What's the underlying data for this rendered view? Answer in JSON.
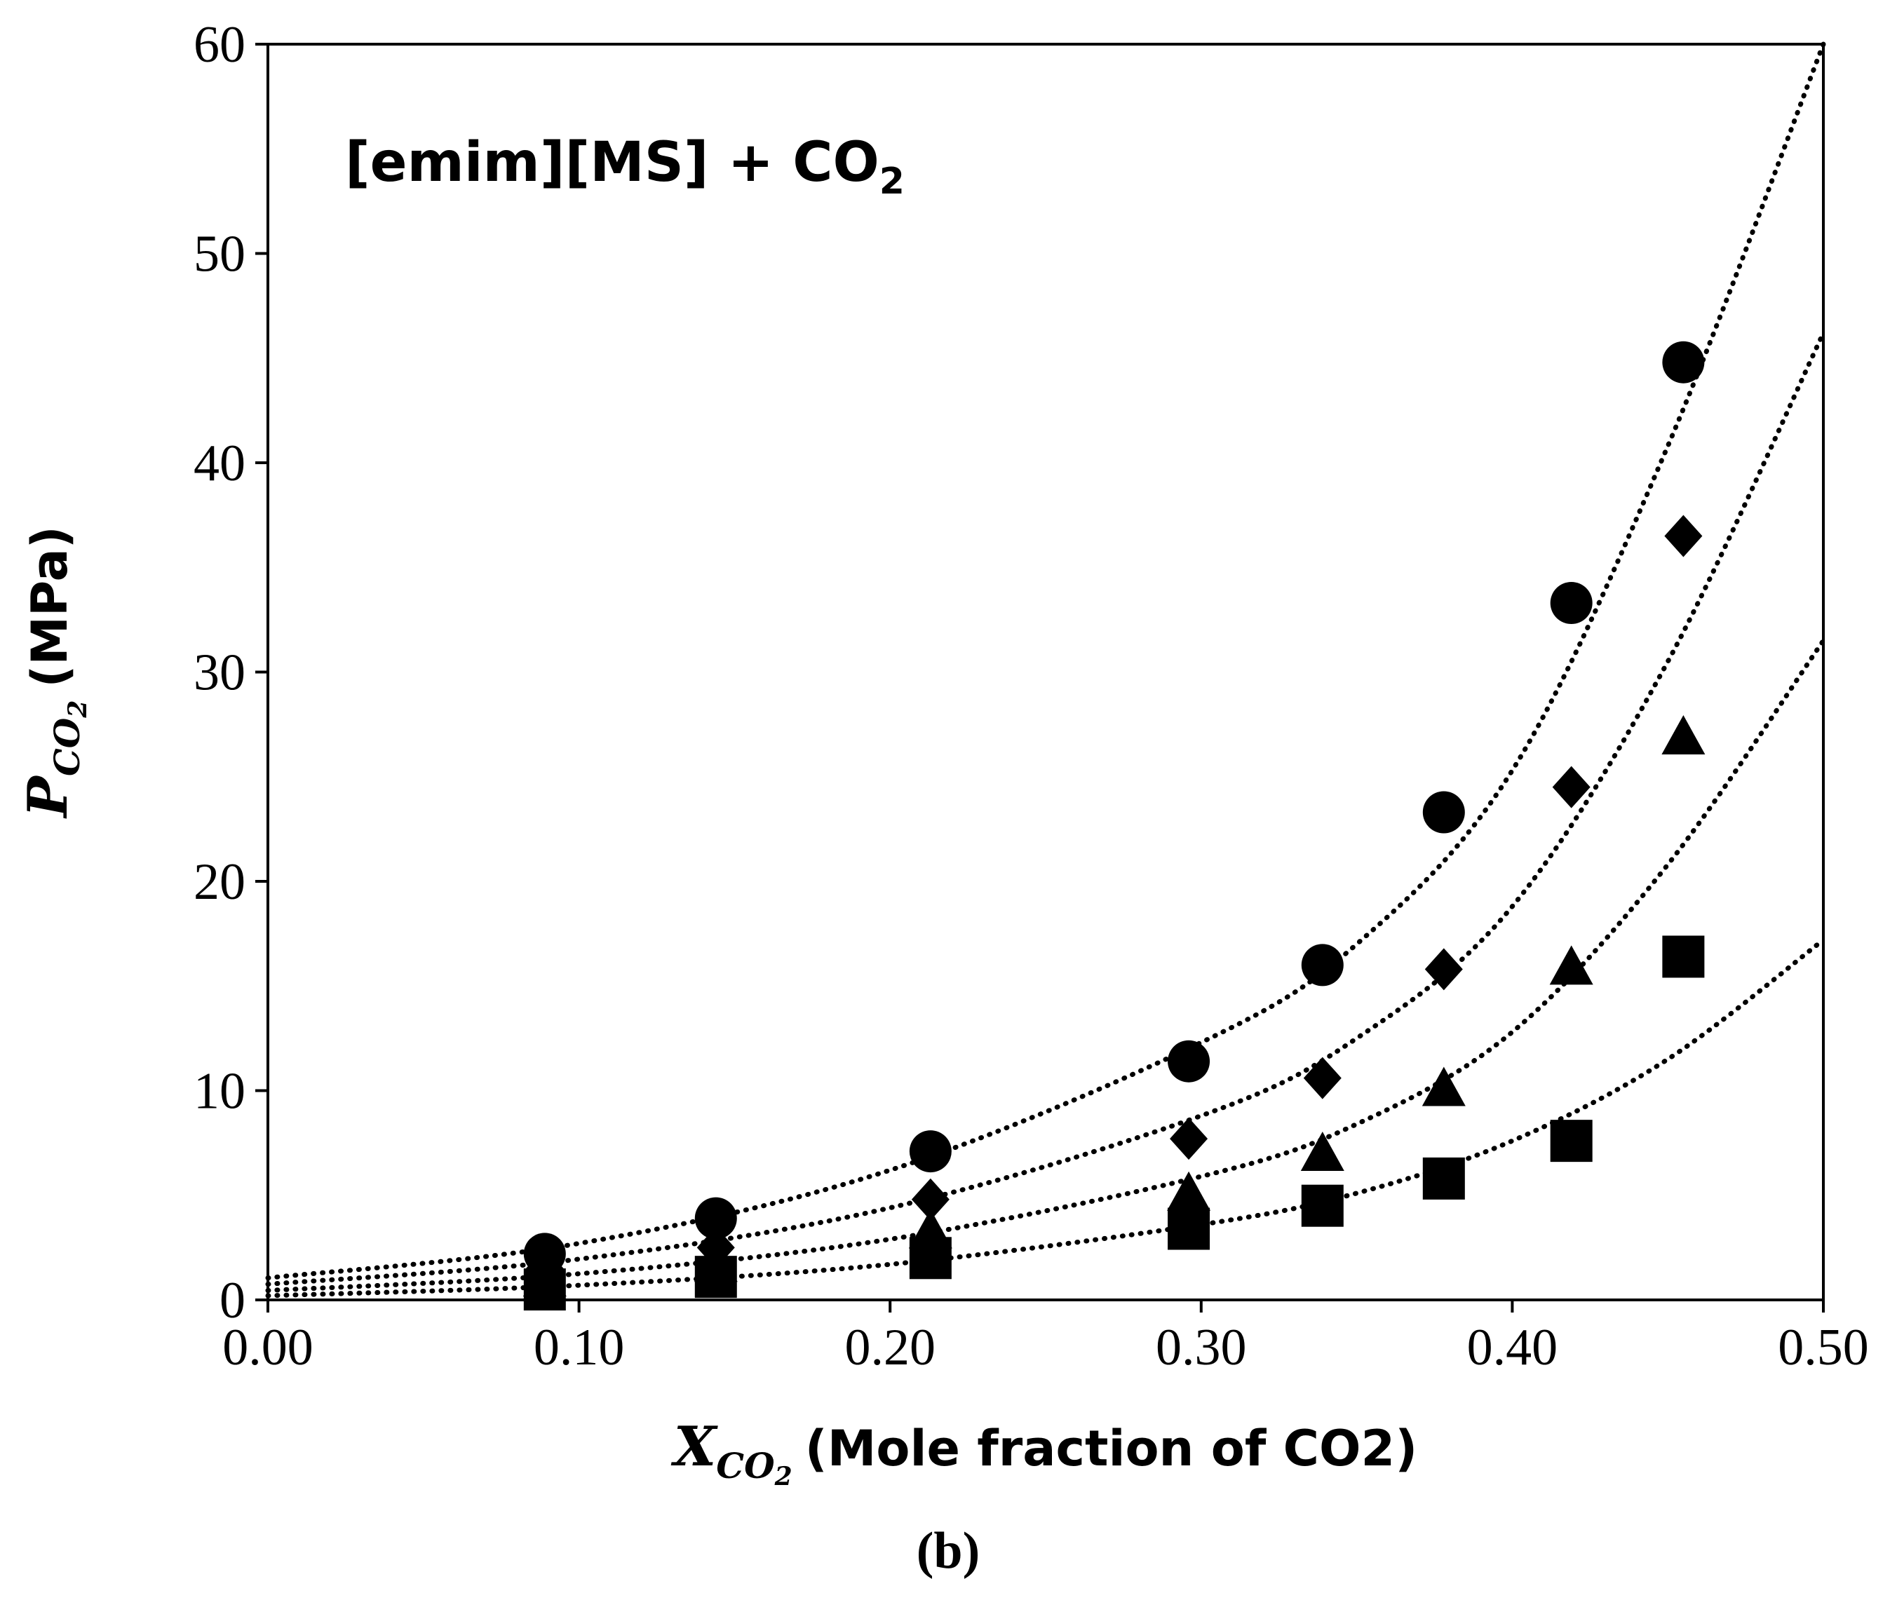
{
  "chart_data": {
    "type": "scatter",
    "annotation": "[emim][MS] + CO",
    "annotation_sub": "2",
    "xlabel": {
      "symbol": "X",
      "subscript": "CO",
      "subsub": "2",
      "text": "(Mole fraction of CO2)"
    },
    "ylabel": {
      "symbol": "P",
      "subscript": "CO",
      "subsub": "2",
      "text": "(MPa)"
    },
    "caption": "(b)",
    "xlim": [
      0,
      0.5
    ],
    "ylim": [
      0,
      60
    ],
    "x_ticks": [
      0,
      0.1,
      0.2,
      0.3,
      0.4,
      0.5
    ],
    "x_tick_labels": [
      "0.00",
      "0.10",
      "0.20",
      "0.30",
      "0.40",
      "0.50"
    ],
    "y_ticks": [
      0,
      10,
      20,
      30,
      40,
      50,
      60
    ],
    "y_tick_labels": [
      "0",
      "10",
      "20",
      "30",
      "40",
      "50",
      "60"
    ],
    "x": [
      0.089,
      0.144,
      0.213,
      0.296,
      0.339,
      0.378,
      0.419,
      0.455
    ],
    "series": [
      {
        "name": "circle series",
        "marker": "circle",
        "values": [
          2.2,
          3.9,
          7.1,
          11.4,
          16.0,
          23.3,
          33.3,
          44.8
        ],
        "fit_line": [
          [
            0.0,
            1.05
          ],
          [
            0.1,
            2.7
          ],
          [
            0.2,
            6.2
          ],
          [
            0.3,
            12.3
          ],
          [
            0.35,
            17.0
          ],
          [
            0.4,
            25.3
          ],
          [
            0.45,
            40.8
          ],
          [
            0.5,
            60.0
          ]
        ]
      },
      {
        "name": "diamond series",
        "marker": "diamond",
        "values": [
          1.5,
          2.5,
          4.8,
          7.7,
          10.6,
          15.8,
          24.5,
          36.5
        ],
        "fit_line": [
          [
            0.0,
            0.75
          ],
          [
            0.1,
            1.95
          ],
          [
            0.2,
            4.4
          ],
          [
            0.3,
            8.8
          ],
          [
            0.35,
            12.5
          ],
          [
            0.4,
            18.8
          ],
          [
            0.45,
            30.5
          ],
          [
            0.5,
            46.2
          ]
        ]
      },
      {
        "name": "triangle series",
        "marker": "triangle",
        "values": [
          0.9,
          1.6,
          3.2,
          5.0,
          6.9,
          10.0,
          15.8,
          26.8
        ],
        "fit_line": [
          [
            0.0,
            0.45
          ],
          [
            0.1,
            1.25
          ],
          [
            0.2,
            2.9
          ],
          [
            0.3,
            5.9
          ],
          [
            0.35,
            8.4
          ],
          [
            0.4,
            12.8
          ],
          [
            0.45,
            20.8
          ],
          [
            0.5,
            31.5
          ]
        ]
      },
      {
        "name": "square series",
        "marker": "square",
        "values": [
          0.5,
          1.1,
          2.0,
          3.4,
          4.5,
          5.8,
          7.6,
          16.4
        ],
        "fit_line": [
          [
            0.0,
            0.2
          ],
          [
            0.1,
            0.7
          ],
          [
            0.2,
            1.7
          ],
          [
            0.3,
            3.6
          ],
          [
            0.35,
            5.1
          ],
          [
            0.4,
            7.6
          ],
          [
            0.45,
            11.5
          ],
          [
            0.5,
            17.2
          ]
        ]
      }
    ]
  }
}
